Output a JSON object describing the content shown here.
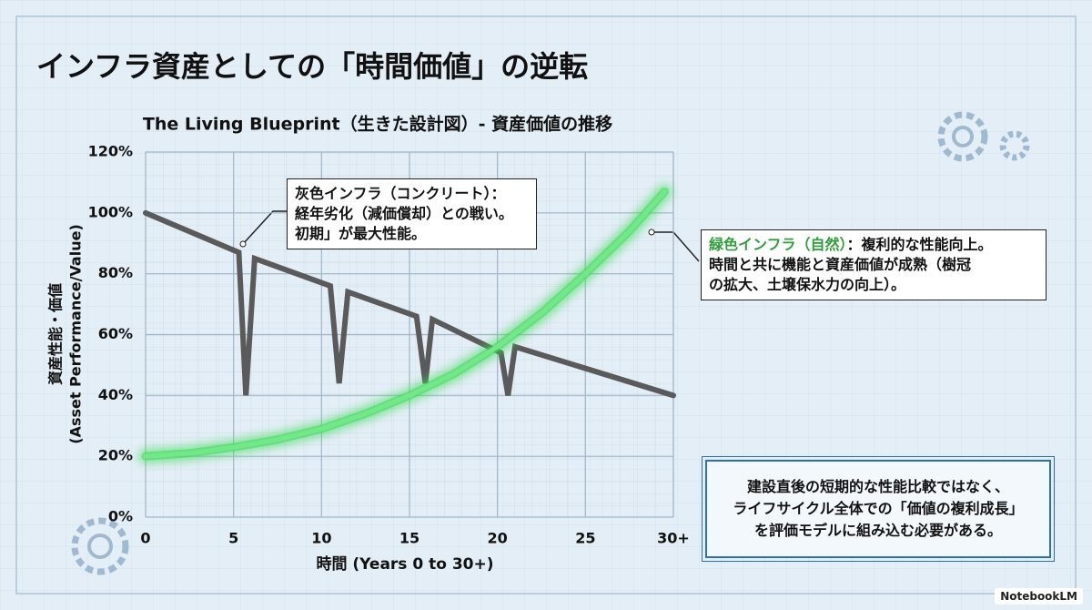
{
  "header": {
    "title": "インフラ資産としての「時間価値」の逆転"
  },
  "chart_data": {
    "type": "line",
    "title": "The Living Blueprint（生きた設計図）- 資産価値の推移",
    "xlabel": "時間 (Years 0 to 30+)",
    "ylabel": [
      "資産性能・価値",
      "(Asset Performance/Value)"
    ],
    "xlim": [
      0,
      30
    ],
    "xticks": [
      0,
      5,
      10,
      15,
      20,
      25,
      {
        "value": 30,
        "label": "30+"
      }
    ],
    "ylim": [
      0,
      120
    ],
    "yticks": [
      {
        "value": 0,
        "label": "0%"
      },
      {
        "value": 20,
        "label": "20%"
      },
      {
        "value": 40,
        "label": "40%"
      },
      {
        "value": 60,
        "label": "60%"
      },
      {
        "value": 80,
        "label": "80%"
      },
      {
        "value": 100,
        "label": "100%"
      },
      {
        "value": 120,
        "label": "120%"
      }
    ],
    "grid": true,
    "series": [
      {
        "color": "#5a5a5a",
        "glow": false,
        "x": [
          0,
          5.3,
          5.7,
          6.2,
          10.5,
          11,
          11.5,
          15.4,
          15.9,
          16.3,
          20.2,
          20.6,
          21,
          30
        ],
        "values": [
          100,
          87,
          40,
          85,
          76,
          44,
          74,
          66,
          44,
          65,
          54,
          40,
          56,
          40
        ]
      },
      {
        "color": "#3ddc5a",
        "glow": true,
        "x": [
          0,
          2.5,
          5,
          7.5,
          10,
          12.5,
          15,
          17.5,
          20,
          22.5,
          25,
          27.5,
          29.5
        ],
        "values": [
          20,
          21,
          23,
          25.5,
          29,
          34,
          40,
          47,
          56,
          67,
          80,
          94,
          107
        ]
      }
    ]
  },
  "annotations": {
    "gray": [
      "灰色インフラ（コンクリート）：",
      "経年劣化（減価償却）との戦い。",
      "初期」が最大性能。"
    ],
    "green": {
      "label": "緑色インフラ（自然）",
      "lines": [
        "：複利的な性能向上。",
        "時間と共に機能と資産価値が成熟（樹冠",
        "の拡大、土壌保水力の向上）。"
      ]
    }
  },
  "note": [
    "建設直後の短期的な性能比較ではなく、",
    "ライフサイクル全体での「価値の複利成長」",
    "を評価モデルに組み込む必要がある。"
  ],
  "footer": {
    "brand": "NotebookLM"
  }
}
